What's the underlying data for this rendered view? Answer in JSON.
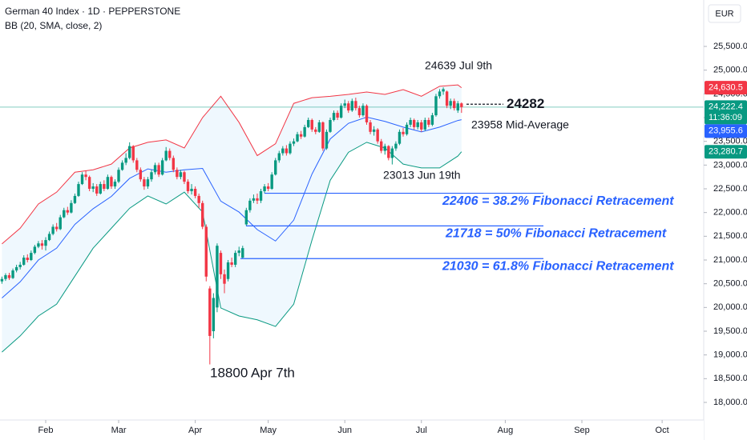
{
  "chart_data": {
    "type": "candlestick",
    "title": "German 40 Index · 1D · PEPPERSTONE",
    "indicator": "BB (20, SMA, close, 2)",
    "currency": "EUR",
    "up_color": "#089981",
    "down_color": "#f23645",
    "grid": false,
    "xlim": [
      -0.53,
      192.4
    ],
    "xticks": [
      {
        "value": 12,
        "label": "Feb"
      },
      {
        "value": 32,
        "label": "Mar"
      },
      {
        "value": 53,
        "label": "Apr"
      },
      {
        "value": 73,
        "label": "May"
      },
      {
        "value": 94,
        "label": "Jun"
      },
      {
        "value": 115,
        "label": "Jul"
      },
      {
        "value": 138,
        "label": "Aug"
      },
      {
        "value": 159,
        "label": "Sep"
      },
      {
        "value": 181,
        "label": "Oct"
      }
    ],
    "ylim": [
      17629,
      26478
    ],
    "yticks": [
      {
        "value": 18000,
        "label": "18,000.0"
      },
      {
        "value": 18500,
        "label": "18,500.0"
      },
      {
        "value": 19000,
        "label": "19,000.0"
      },
      {
        "value": 19500,
        "label": "19,500.0"
      },
      {
        "value": 20000,
        "label": "20,000.0"
      },
      {
        "value": 20500,
        "label": "20,500.0"
      },
      {
        "value": 21000,
        "label": "21,000.0"
      },
      {
        "value": 21500,
        "label": "21,500.0"
      },
      {
        "value": 22000,
        "label": "22,000.0"
      },
      {
        "value": 22500,
        "label": "22,500.0"
      },
      {
        "value": 23000,
        "label": "23,000.0"
      },
      {
        "value": 23500,
        "label": "23,500.0"
      },
      {
        "value": 24000,
        "label": "24,000.0"
      },
      {
        "value": 24500,
        "label": "24,500.0"
      },
      {
        "value": 25000,
        "label": "25,000.0"
      },
      {
        "value": 25500,
        "label": "25,500.0"
      }
    ],
    "open": [
      20550,
      20600,
      20680,
      20620,
      20780,
      20850,
      20900,
      21050,
      21000,
      21150,
      21280,
      21350,
      21300,
      21420,
      21550,
      21700,
      21650,
      21900,
      22050,
      22000,
      22200,
      22350,
      22600,
      22800,
      22750,
      22500,
      22550,
      22400,
      22600,
      22500,
      22750,
      22550,
      22650,
      22900,
      23050,
      23150,
      23400,
      23100,
      22900,
      22700,
      22550,
      22700,
      22850,
      23000,
      22800,
      23100,
      23300,
      23150,
      22900,
      22750,
      22850,
      22650,
      22450,
      22500,
      22350,
      22200,
      21700,
      20400,
      19500,
      20000,
      21150,
      20700,
      20600,
      20950,
      20900,
      21150,
      21050,
      21750,
      22050,
      22250,
      22300,
      22250,
      22450,
      22550,
      22500,
      22800,
      23100,
      23250,
      23350,
      23250,
      23450,
      23500,
      23650,
      23600,
      23800,
      23950,
      23750,
      23700,
      23900,
      23350,
      23700,
      23950,
      24100,
      24000,
      24250,
      24300,
      24150,
      24350,
      24200,
      24050,
      24250,
      23900,
      23700,
      23750,
      23500,
      23300,
      23400,
      23150,
      23350,
      23450,
      23700,
      23650,
      23850,
      23950,
      23800,
      23900,
      23750,
      23950,
      23850,
      24050,
      24450,
      24550,
      24550,
      24250,
      24350,
      24150,
      24300
    ],
    "high": [
      20650,
      20720,
      20730,
      20820,
      20900,
      20960,
      21100,
      21120,
      21200,
      21320,
      21400,
      21420,
      21480,
      21600,
      21750,
      21780,
      21950,
      22100,
      22120,
      22260,
      22400,
      22650,
      22850,
      22880,
      22780,
      22620,
      22600,
      22650,
      22680,
      22800,
      22780,
      22700,
      22950,
      23100,
      23250,
      23480,
      23420,
      23150,
      22950,
      22750,
      22750,
      22900,
      23050,
      23050,
      23150,
      23380,
      23350,
      23200,
      22950,
      22900,
      22880,
      22700,
      22600,
      22550,
      22400,
      22250,
      21750,
      20450,
      20300,
      21350,
      21200,
      20800,
      21000,
      21050,
      21200,
      21280,
      21300,
      22100,
      22300,
      22380,
      22400,
      22500,
      22600,
      22620,
      22850,
      23150,
      23300,
      23400,
      23420,
      23500,
      23560,
      23700,
      23720,
      23850,
      24000,
      23980,
      23800,
      23950,
      23920,
      23750,
      24000,
      24150,
      24150,
      24300,
      24380,
      24350,
      24400,
      24420,
      24250,
      24300,
      24280,
      23950,
      23820,
      23780,
      23550,
      23450,
      23420,
      23400,
      23500,
      23750,
      23780,
      23900,
      24000,
      23980,
      23950,
      23950,
      24000,
      24000,
      24100,
      24500,
      24600,
      24639,
      24570,
      24400,
      24400,
      24350,
      24320
    ],
    "low": [
      20500,
      20560,
      20580,
      20600,
      20740,
      20800,
      20880,
      20950,
      20980,
      21120,
      21250,
      21220,
      21200,
      21400,
      21520,
      21600,
      21630,
      21880,
      21950,
      21980,
      22180,
      22330,
      22580,
      22680,
      22450,
      22430,
      22350,
      22380,
      22450,
      22480,
      22500,
      22500,
      22620,
      22880,
      23000,
      23120,
      23050,
      22850,
      22650,
      22480,
      22500,
      22650,
      22800,
      22750,
      22780,
      23080,
      23100,
      22850,
      22700,
      22700,
      22600,
      22400,
      22380,
      22300,
      22100,
      21650,
      20550,
      18800,
      19350,
      19900,
      20600,
      20300,
      20550,
      20850,
      20850,
      21080,
      21030,
      21718,
      22000,
      22200,
      22180,
      22200,
      22406,
      22450,
      22480,
      22780,
      23050,
      23200,
      23200,
      23220,
      23400,
      23480,
      23550,
      23580,
      23780,
      23700,
      23650,
      23680,
      23300,
      23320,
      23680,
      23920,
      23950,
      23980,
      24200,
      24100,
      24120,
      24150,
      24000,
      24020,
      23850,
      23650,
      23620,
      23450,
      23250,
      23220,
      23100,
      23013,
      23300,
      23420,
      23600,
      23620,
      23800,
      23750,
      23750,
      23700,
      23720,
      23800,
      23820,
      24020,
      24400,
      24480,
      24200,
      24180,
      24150,
      24100,
      24100
    ],
    "close": [
      20600,
      20680,
      20620,
      20780,
      20850,
      20900,
      21050,
      21000,
      21150,
      21280,
      21350,
      21300,
      21420,
      21550,
      21700,
      21650,
      21900,
      22050,
      22000,
      22200,
      22350,
      22600,
      22800,
      22750,
      22500,
      22550,
      22400,
      22600,
      22500,
      22750,
      22550,
      22650,
      22900,
      23050,
      23150,
      23400,
      23100,
      22900,
      22700,
      22550,
      22700,
      22850,
      23000,
      22800,
      23100,
      23300,
      23150,
      22900,
      22750,
      22850,
      22650,
      22450,
      22500,
      22350,
      22200,
      21700,
      20650,
      19400,
      20200,
      21300,
      20700,
      20500,
      20950,
      20900,
      21150,
      21200,
      21250,
      22050,
      22250,
      22300,
      22250,
      22450,
      22550,
      22500,
      22800,
      23100,
      23250,
      23350,
      23250,
      23450,
      23500,
      23650,
      23600,
      23800,
      23950,
      23750,
      23700,
      23900,
      23350,
      23700,
      23950,
      24100,
      24000,
      24250,
      24300,
      24150,
      24350,
      24200,
      24050,
      24250,
      23900,
      23700,
      23750,
      23500,
      23300,
      23400,
      23150,
      23350,
      23450,
      23700,
      23650,
      23850,
      23950,
      23800,
      23900,
      23750,
      23950,
      23850,
      24050,
      24450,
      24550,
      24600,
      24250,
      24350,
      24200,
      24300,
      24222.4
    ],
    "band_x": [
      0,
      5,
      10,
      15,
      20,
      25,
      30,
      35,
      40,
      45,
      50,
      55,
      60,
      65,
      70,
      75,
      80,
      85,
      90,
      95,
      100,
      105,
      110,
      115,
      120,
      125,
      126
    ],
    "band_fill": "rgba(33,150,243,0.07)",
    "bands": [
      {
        "color": "#f23645",
        "values": [
          21340,
          21670,
          22180,
          22430,
          22850,
          22900,
          23020,
          23360,
          23480,
          23530,
          23360,
          24000,
          24450,
          23900,
          23200,
          23450,
          24300,
          24420,
          24450,
          24490,
          24540,
          24490,
          24590,
          24450,
          24660,
          24690,
          24630.5
        ]
      },
      {
        "color": "#2962ff",
        "values": [
          20200,
          20540,
          21000,
          21250,
          21750,
          22080,
          22340,
          22720,
          22920,
          22850,
          22900,
          22930,
          22240,
          22010,
          21640,
          21400,
          21840,
          22810,
          23550,
          23880,
          24010,
          23920,
          23800,
          23700,
          23800,
          23940,
          23955.6
        ]
      },
      {
        "color": "#089981",
        "values": [
          19060,
          19400,
          19820,
          20070,
          20660,
          21250,
          21670,
          22090,
          22350,
          22180,
          22430,
          22010,
          19990,
          19820,
          19740,
          19600,
          20070,
          21420,
          22680,
          23270,
          23480,
          23360,
          23020,
          22940,
          22940,
          23190,
          23280.7
        ]
      }
    ],
    "price_labels": [
      {
        "value": 24630.5,
        "label": "24,630.5",
        "color": "#f23645"
      },
      {
        "value": 24222.4,
        "label": "24,222.4",
        "color": "#089981",
        "countdown": "11:36:09"
      },
      {
        "value": 23955.6,
        "label": "23,955.6",
        "color": "#2962ff"
      },
      {
        "value": 23280.7,
        "label": "23,280.7",
        "color": "#089981"
      }
    ],
    "annotations": [
      {
        "text": "24639 Jul 9th",
        "value": 24639
      },
      {
        "text": "24282",
        "value": 24282
      },
      {
        "text": "23958 Mid-Average",
        "value": 23958
      },
      {
        "text": "23013 Jun 19th",
        "value": 23013
      },
      {
        "text": "18800 Apr 7th",
        "value": 18800
      }
    ],
    "fibonacci": [
      {
        "text": "22406 = 38.2% Fibonacci Retracement",
        "value": 22406
      },
      {
        "text": "21718 = 50% Fibonacci Retracement",
        "value": 21718
      },
      {
        "text": "21030 = 61.8% Fibonacci Retracement",
        "value": 21030
      }
    ],
    "fib_color": "#2962ff"
  }
}
